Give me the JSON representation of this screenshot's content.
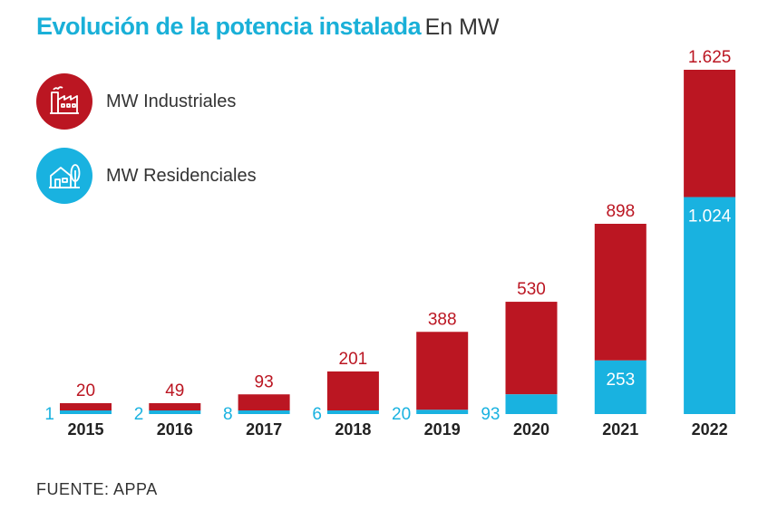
{
  "header": {
    "title": "Evolución de la potencia instalada",
    "unit": "En MW"
  },
  "legend": {
    "industrial": {
      "label": "MW Industriales",
      "icon": "factory-icon",
      "color": "#bb1622"
    },
    "residential": {
      "label": "MW Residenciales",
      "icon": "house-tree-icon",
      "color": "#19b2e0"
    }
  },
  "source": "FUENTE: APPA",
  "colors": {
    "title": "#1ab0d8",
    "industrial": "#bb1622",
    "residential": "#19b2e0",
    "text": "#333333"
  },
  "chart_data": {
    "type": "bar",
    "stacked": true,
    "title": "Evolución de la potencia instalada",
    "subtitle": "En MW",
    "categories": [
      "2015",
      "2016",
      "2017",
      "2018",
      "2019",
      "2020",
      "2021",
      "2022"
    ],
    "series": [
      {
        "name": "MW Residenciales",
        "values": [
          1,
          2,
          8,
          6,
          20,
          93,
          253,
          1024
        ],
        "labels": [
          "1",
          "2",
          "8",
          "6",
          "20",
          "93",
          "253",
          "1.024"
        ]
      },
      {
        "name": "MW Industriales",
        "values": [
          20,
          49,
          93,
          201,
          388,
          530,
          898,
          1625
        ],
        "labels": [
          "20",
          "49",
          "93",
          "201",
          "388",
          "530",
          "898",
          "1.625"
        ]
      }
    ],
    "xlabel": "",
    "ylabel": "",
    "grid": false,
    "legend_position": "top-left"
  }
}
